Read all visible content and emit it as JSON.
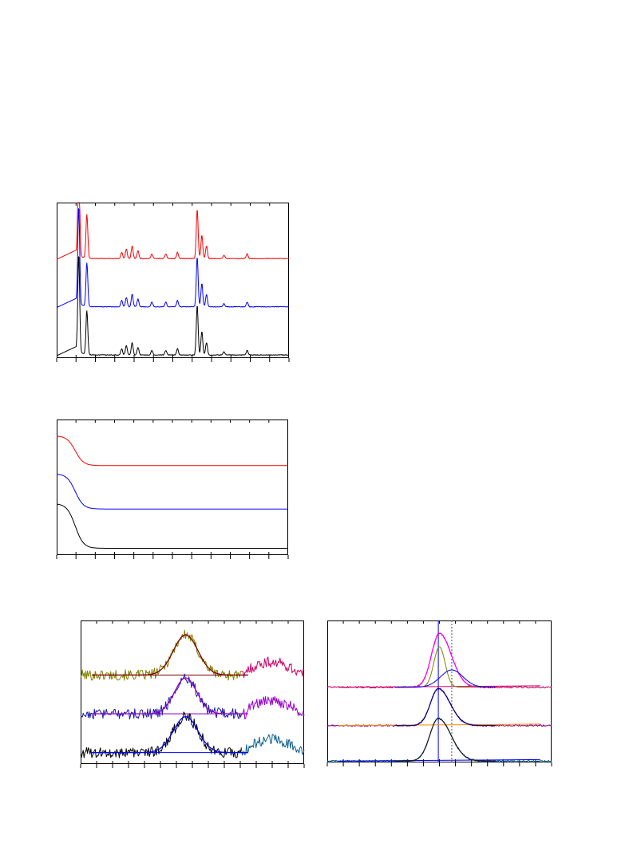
{
  "chart_data": [
    {
      "id": "xrd",
      "type": "line",
      "title": "",
      "xlabel": "",
      "ylabel": "",
      "xlim": [
        0,
        1
      ],
      "ylim": [
        0,
        1
      ],
      "grid": false,
      "legend": "none",
      "series": [
        {
          "color": "#ff0000",
          "offset": 0.62
        },
        {
          "color": "#0000ff",
          "offset": 0.31
        },
        {
          "color": "#000000",
          "offset": 0.0
        }
      ],
      "peaks": [
        [
          0.095,
          0.62,
          0.004
        ],
        [
          0.13,
          0.28,
          0.004
        ],
        [
          0.28,
          0.04,
          0.004
        ],
        [
          0.3,
          0.06,
          0.004
        ],
        [
          0.325,
          0.08,
          0.004
        ],
        [
          0.35,
          0.05,
          0.004
        ],
        [
          0.41,
          0.03,
          0.004
        ],
        [
          0.47,
          0.03,
          0.004
        ],
        [
          0.52,
          0.04,
          0.004
        ],
        [
          0.605,
          0.32,
          0.004
        ],
        [
          0.625,
          0.15,
          0.004
        ],
        [
          0.645,
          0.08,
          0.004
        ],
        [
          0.72,
          0.02,
          0.004
        ],
        [
          0.82,
          0.03,
          0.004
        ]
      ]
    },
    {
      "id": "decay",
      "type": "line",
      "title": "",
      "xlabel": "",
      "ylabel": "",
      "xlim": [
        0,
        1
      ],
      "ylim": [
        0,
        1
      ],
      "grid": false,
      "legend": "none",
      "series": [
        {
          "color": "#ff0000",
          "baseline": 0.66,
          "height": 0.22
        },
        {
          "color": "#0000ff",
          "baseline": 0.34,
          "height": 0.26
        },
        {
          "color": "#000000",
          "baseline": 0.05,
          "height": 0.33
        }
      ]
    },
    {
      "id": "fit-left",
      "type": "line",
      "title": "",
      "xlabel": "",
      "ylabel": "",
      "xlim": [
        0,
        1
      ],
      "ylim": [
        0,
        1
      ],
      "grid": false,
      "legend": "none",
      "series": [
        {
          "raw_color": "#808000",
          "tail_color": "#cc0066",
          "fit_color": "#800000",
          "baseline_color": "#800000",
          "offset": 0.62,
          "peak_height": 0.28,
          "peak_center": 0.47,
          "peak_width": 0.055
        },
        {
          "raw_color": "#1a1aa0",
          "tail_color": "#9900cc",
          "fit_color": "#9900cc",
          "baseline_color": "#9900cc",
          "offset": 0.35,
          "peak_height": 0.25,
          "peak_center": 0.47,
          "peak_width": 0.05
        },
        {
          "raw_color": "#000000",
          "tail_color": "#0b5e8c",
          "fit_color": "#0000ff",
          "baseline_color": "#0000ff",
          "offset": 0.08,
          "peak_height": 0.25,
          "peak_center": 0.47,
          "peak_width": 0.055
        }
      ]
    },
    {
      "id": "fit-right",
      "type": "line",
      "title": "",
      "xlabel": "",
      "ylabel": "",
      "xlim": [
        0,
        1
      ],
      "ylim": [
        0,
        1
      ],
      "grid": false,
      "legend": "none",
      "reference_lines": [
        0.495,
        0.555
      ],
      "series": [
        {
          "raw_color": "#cc0066",
          "fit_color": "#ff00ff",
          "components": [
            "#808000",
            "#0000ff"
          ],
          "baseline_color": "#cc0066",
          "offset": 0.53,
          "peak_height": 0.38,
          "peak_center": 0.5,
          "peak_width": 0.035
        },
        {
          "raw_color": "#800080",
          "fit_color": "#000080",
          "components": [],
          "baseline_color": "#ff8c00",
          "offset": 0.26,
          "peak_height": 0.26,
          "peak_center": 0.495,
          "peak_width": 0.035
        },
        {
          "raw_color": "#0b5e8c",
          "fit_color": "#1a1a1a",
          "components": [],
          "baseline_color": "#0000ff",
          "offset": 0.01,
          "peak_height": 0.3,
          "peak_center": 0.495,
          "peak_width": 0.038
        }
      ]
    }
  ]
}
